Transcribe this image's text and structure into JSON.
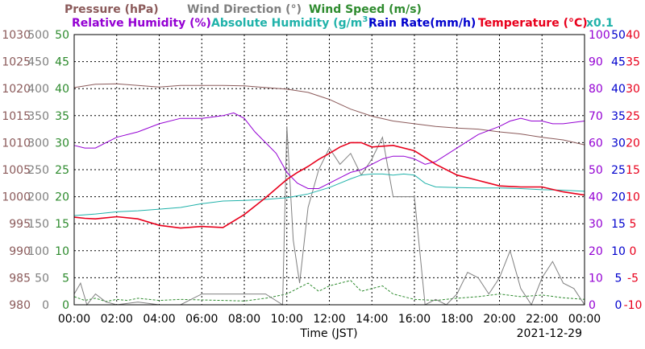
{
  "chart_data": {
    "type": "line",
    "date": "2021-12-29",
    "xlabel": "Time (JST)",
    "x_ticks": [
      "00:00",
      "02:00",
      "04:00",
      "06:00",
      "08:00",
      "10:00",
      "12:00",
      "14:00",
      "16:00",
      "18:00",
      "20:00",
      "22:00",
      "00:00"
    ],
    "legend": {
      "pressure": "Pressure (hPa)",
      "wind_direction": "Wind Direction (°)",
      "wind_speed": "Wind Speed (m/s)",
      "relative_humidity": "Relative Humidity (%)",
      "absolute_humidity_prefix": "Absolute Humidity (g/m",
      "absolute_humidity_sup": "3",
      "absolute_humidity_suffix": ")",
      "rain_rate": "Rain Rate(mm/h)",
      "temperature": "Temperature (°C)",
      "scale_note": "x0.1"
    },
    "axes": {
      "pressure": {
        "ticks": [
          "1030",
          "1025",
          "1020",
          "1015",
          "1010",
          "1005",
          "1000",
          "995",
          "990",
          "985",
          "980"
        ],
        "range": [
          980,
          1030
        ],
        "color": "#8b5a5a"
      },
      "wind_direction": {
        "ticks": [
          "500",
          "450",
          "400",
          "350",
          "300",
          "250",
          "200",
          "150",
          "100",
          "50",
          "0"
        ],
        "range": [
          0,
          500
        ],
        "color": "#808080"
      },
      "wind_speed": {
        "ticks": [
          "50",
          "45",
          "40",
          "35",
          "30",
          "25",
          "20",
          "15",
          "10",
          "5",
          "0"
        ],
        "range": [
          0,
          50
        ],
        "color": "#2e8b2e"
      },
      "relative_humidity": {
        "ticks": [
          "100",
          "90",
          "80",
          "70",
          "60",
          "50",
          "40",
          "30",
          "20",
          "10",
          "0"
        ],
        "range": [
          0,
          100
        ],
        "color": "#9400d3"
      },
      "rain_rate": {
        "ticks": [
          "50",
          "45",
          "40",
          "35",
          "30",
          "25",
          "20",
          "15",
          "10",
          "5",
          "0"
        ],
        "range": [
          0,
          50
        ],
        "color": "#0000cd"
      },
      "temperature": {
        "ticks": [
          "40",
          "35",
          "30",
          "25",
          "20",
          "15",
          "10",
          "5",
          "0",
          "-5",
          "-10"
        ],
        "range": [
          -10,
          40
        ],
        "color": "#e8001c"
      }
    },
    "colors": {
      "pressure": "#8b5a5a",
      "wind_direction": "#808080",
      "wind_speed": "#2e8b2e",
      "relative_humidity": "#9400d3",
      "absolute_humidity": "#20b2aa",
      "rain_rate": "#0000cd",
      "temperature": "#e8001c"
    },
    "grid": true,
    "x_unit": "hours",
    "series": [
      {
        "key": "pressure",
        "x": [
          0,
          1,
          2,
          3,
          4,
          5,
          6,
          7,
          8,
          9,
          10,
          11,
          12,
          13,
          14,
          15,
          16,
          17,
          18,
          19,
          20,
          21,
          22,
          23,
          24
        ],
        "values": [
          1020.2,
          1020.8,
          1020.9,
          1020.6,
          1020.3,
          1020.6,
          1020.6,
          1020.6,
          1020.5,
          1020.2,
          1019.9,
          1019.3,
          1018.0,
          1016.2,
          1014.9,
          1014.0,
          1013.5,
          1013.0,
          1012.7,
          1012.5,
          1012.0,
          1011.6,
          1011.0,
          1010.5,
          1009.6
        ]
      },
      {
        "key": "relative_humidity",
        "x": [
          0,
          0.5,
          1,
          2,
          3,
          4,
          5,
          6,
          7,
          7.5,
          8,
          8.5,
          9,
          9.5,
          10,
          10.5,
          11,
          11.5,
          12,
          12.5,
          13,
          13.5,
          14,
          14.5,
          15,
          15.5,
          16,
          16.5,
          17,
          18,
          19,
          20,
          20.5,
          21,
          21.5,
          22,
          22.5,
          23,
          24
        ],
        "values": [
          59,
          58,
          58,
          62,
          64,
          67,
          69,
          69,
          70,
          71,
          69,
          64,
          60,
          56,
          49,
          45,
          43,
          43,
          45,
          47,
          49,
          50,
          52,
          54,
          55,
          55,
          54,
          52,
          53,
          58,
          63,
          66,
          68,
          69,
          68,
          68,
          67,
          67,
          68
        ]
      },
      {
        "key": "absolute_humidity",
        "x": [
          0,
          1,
          2,
          3,
          4,
          5,
          6,
          7,
          8,
          9,
          10,
          11,
          12,
          12.5,
          13,
          13.5,
          14,
          14.5,
          15,
          15.5,
          16,
          16.5,
          17,
          18,
          19,
          20,
          21,
          22,
          23,
          24
        ],
        "values": [
          16.5,
          16.8,
          17.2,
          17.4,
          17.7,
          18.0,
          18.7,
          19.2,
          19.3,
          19.5,
          19.8,
          20.5,
          21.7,
          22.5,
          23.3,
          24.0,
          24.2,
          24.2,
          24.0,
          24.2,
          24.0,
          22.5,
          21.8,
          21.7,
          21.6,
          21.6,
          21.5,
          21.3,
          21.2,
          21.0
        ]
      },
      {
        "key": "temperature",
        "x": [
          0,
          0.5,
          1,
          2,
          3,
          4,
          5,
          6,
          7,
          8,
          9,
          10,
          10.5,
          11,
          11.5,
          12,
          12.5,
          13,
          13.5,
          14,
          15,
          16,
          17,
          18,
          19,
          20,
          21,
          22,
          23,
          24
        ],
        "values": [
          6.2,
          6.0,
          5.9,
          6.3,
          5.9,
          4.7,
          4.2,
          4.5,
          4.3,
          6.7,
          9.8,
          13.2,
          14.5,
          15.6,
          16.9,
          18.0,
          19.2,
          20.0,
          20.0,
          19.2,
          19.5,
          18.5,
          16.0,
          14.0,
          13.0,
          12.0,
          11.8,
          11.8,
          10.9,
          10.3
        ]
      },
      {
        "key": "wind_direction",
        "x": [
          0,
          0.3,
          0.6,
          1,
          1.5,
          2,
          3,
          4,
          5,
          6,
          7,
          8,
          9,
          9.8,
          10,
          10.3,
          10.6,
          11,
          11.5,
          12,
          12.5,
          13,
          13.5,
          14,
          14.5,
          15,
          16,
          16.5,
          17,
          17.5,
          18,
          18.5,
          19,
          19.5,
          20,
          20.5,
          21,
          21.5,
          22,
          22.5,
          23,
          23.5,
          24
        ],
        "values": [
          20,
          40,
          0,
          20,
          5,
          0,
          5,
          0,
          0,
          20,
          20,
          20,
          20,
          0,
          330,
          120,
          40,
          180,
          250,
          290,
          260,
          280,
          240,
          270,
          310,
          200,
          200,
          0,
          10,
          0,
          20,
          60,
          50,
          20,
          50,
          100,
          30,
          0,
          50,
          80,
          40,
          30,
          0
        ]
      },
      {
        "key": "wind_speed",
        "x": [
          0,
          0.5,
          1,
          1.5,
          2,
          2.5,
          3,
          4,
          5,
          6,
          7,
          8,
          9,
          10,
          10.5,
          11,
          11.5,
          12,
          12.5,
          13,
          13.5,
          14,
          14.5,
          15,
          16,
          17,
          18,
          19,
          20,
          21,
          22,
          23,
          24
        ],
        "values": [
          1.5,
          0.8,
          1.2,
          0.6,
          1.0,
          0.8,
          1.2,
          0.8,
          1.0,
          0.9,
          0.8,
          0.7,
          1.2,
          2.0,
          3.0,
          4.0,
          2.5,
          3.5,
          4.0,
          4.5,
          2.5,
          3.0,
          3.5,
          2.0,
          1.0,
          0.8,
          1.2,
          1.5,
          2.0,
          1.5,
          1.8,
          1.3,
          1.0
        ]
      },
      {
        "key": "rain_rate",
        "x": [
          0,
          24
        ],
        "values": [
          0,
          0
        ]
      }
    ]
  }
}
